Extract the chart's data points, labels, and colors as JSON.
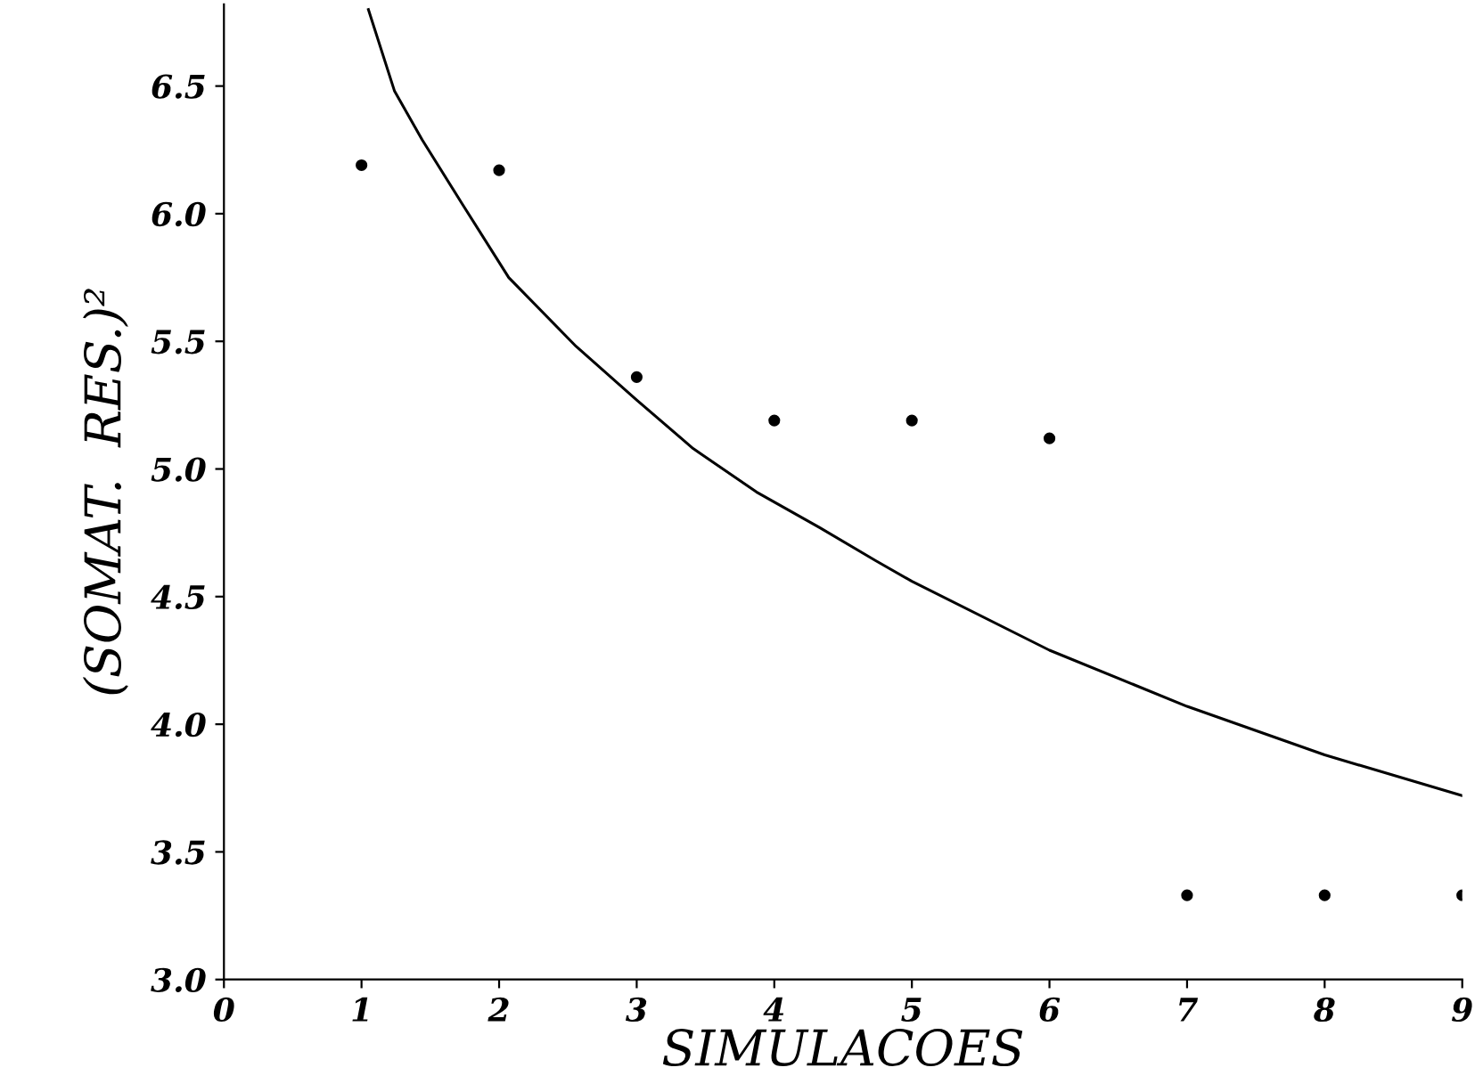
{
  "chart_data": {
    "type": "scatter",
    "xlabel": "SIMULACOES",
    "ylabel": "(SOMAT.  RES.)²",
    "x": [
      1,
      2,
      3,
      4,
      5,
      6,
      7,
      8,
      9
    ],
    "xlim": [
      0,
      9
    ],
    "xticks": [
      0,
      1,
      2,
      3,
      4,
      5,
      6,
      7,
      8,
      9
    ],
    "ylim": [
      3.0,
      6.82
    ],
    "yticks": [
      {
        "value": 3,
        "label": "3.0"
      },
      3.5,
      {
        "value": 4,
        "label": "4.0"
      },
      4.5,
      {
        "value": 5,
        "label": "5.0"
      },
      5.5,
      {
        "value": 6,
        "label": "6.0"
      },
      6.5
    ],
    "grid": false,
    "legend": false,
    "marker": "circle",
    "series": [
      {
        "color": "#000000",
        "values": [
          6.19,
          6.17,
          5.36,
          5.19,
          5.19,
          5.12,
          3.33,
          3.33,
          3.33
        ]
      },
      {
        "type": "line",
        "color": "#000000",
        "line_style": "solid",
        "marker": "none",
        "x": [
          1.05,
          1.24,
          1.44,
          1.73,
          2.07,
          2.56,
          3.0,
          3.41,
          3.87,
          4.33,
          4.74,
          5.0,
          6.0,
          7.0,
          8.0,
          9.0
        ],
        "values": [
          6.8,
          6.48,
          6.29,
          6.04,
          5.75,
          5.48,
          5.27,
          5.08,
          4.91,
          4.77,
          4.64,
          4.56,
          4.29,
          4.07,
          3.88,
          3.72
        ]
      }
    ]
  }
}
